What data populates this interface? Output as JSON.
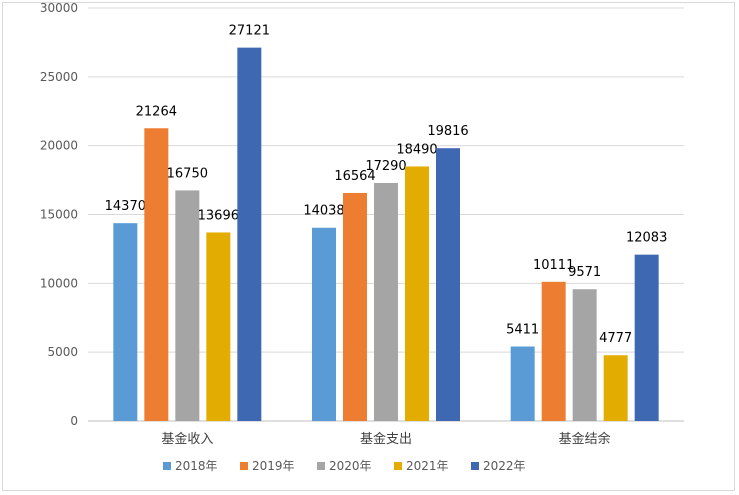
{
  "chart_data": {
    "type": "bar",
    "categories": [
      "基金收入",
      "基金支出",
      "基金结余"
    ],
    "series": [
      {
        "name": "2018年",
        "color": "#5b9bd5",
        "values": [
          14370,
          14038,
          5411
        ]
      },
      {
        "name": "2019年",
        "color": "#ed7d31",
        "values": [
          21264,
          16564,
          10111
        ]
      },
      {
        "name": "2020年",
        "color": "#a5a5a5",
        "values": [
          16750,
          17290,
          9571
        ]
      },
      {
        "name": "2021年",
        "color": "#e3ac00",
        "values": [
          13696,
          18490,
          4777
        ]
      },
      {
        "name": "2022年",
        "color": "#3f68b3",
        "values": [
          27121,
          19816,
          12083
        ]
      }
    ],
    "ylim": [
      0,
      30000
    ],
    "yticks": [
      0,
      5000,
      10000,
      15000,
      20000,
      25000,
      30000
    ],
    "grid": true,
    "legend_position": "bottom"
  }
}
